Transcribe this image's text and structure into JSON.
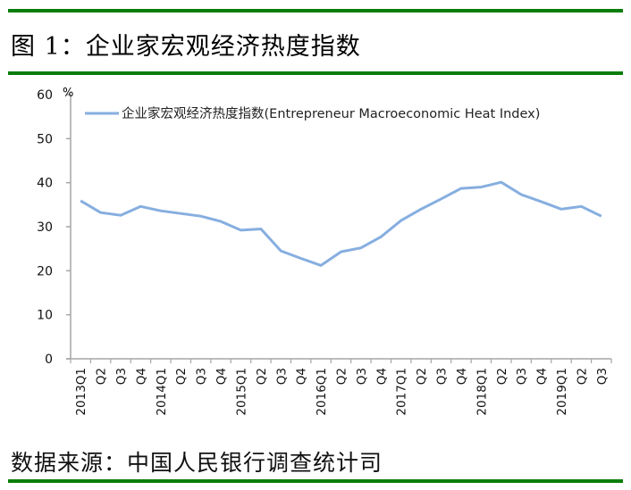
{
  "header": {
    "title": "图 1：企业家宏观经济热度指数"
  },
  "footer": {
    "source": "数据来源：中国人民银行调查统计司"
  },
  "colors": {
    "rule": "#0a7d0a",
    "series": "#86aee0",
    "axis": "#a6a6a6"
  },
  "chart_data": {
    "type": "line",
    "title": "企业家宏观经济热度指数",
    "xlabel": "",
    "ylabel": "%",
    "ylim": [
      0,
      60
    ],
    "yticks": [
      0,
      10,
      20,
      30,
      40,
      50,
      60
    ],
    "grid": false,
    "legend_position": "top-left-inside",
    "categories": [
      "2013Q1",
      "Q2",
      "Q3",
      "Q4",
      "2014Q1",
      "Q2",
      "Q3",
      "Q4",
      "2015Q1",
      "Q2",
      "Q3",
      "Q4",
      "2016Q1",
      "Q2",
      "Q3",
      "Q4",
      "2017Q1",
      "Q2",
      "Q3",
      "Q4",
      "2018Q1",
      "Q2",
      "Q3",
      "Q4",
      "2019Q1",
      "Q2",
      "Q3"
    ],
    "series": [
      {
        "name": "企业家宏观经济热度指数(Entrepreneur  Macroeconomic Heat Index)",
        "values": [
          35.9,
          33.2,
          32.6,
          34.6,
          33.6,
          33.0,
          32.4,
          31.2,
          29.2,
          29.5,
          24.5,
          22.8,
          21.2,
          24.3,
          25.2,
          27.7,
          31.4,
          34.0,
          36.3,
          38.7,
          39.0,
          40.1,
          37.3,
          35.7,
          34.0,
          34.6,
          32.4
        ]
      }
    ]
  }
}
